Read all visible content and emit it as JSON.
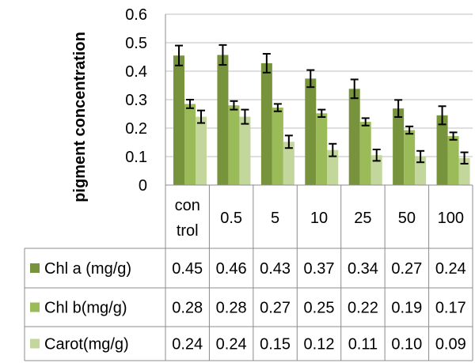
{
  "chart_data": {
    "type": "bar",
    "ylabel": "pigment concentration",
    "ylim": [
      0,
      0.6
    ],
    "yticks": [
      "0",
      "0.1",
      "0.2",
      "0.3",
      "0.4",
      "0.5",
      "0.6"
    ],
    "categories": [
      {
        "line1": "con",
        "line2": "trol"
      },
      {
        "line1": "0.5",
        "line2": ""
      },
      {
        "line1": "5",
        "line2": ""
      },
      {
        "line1": "10",
        "line2": ""
      },
      {
        "line1": "25",
        "line2": ""
      },
      {
        "line1": "50",
        "line2": ""
      },
      {
        "line1": "100",
        "line2": ""
      }
    ],
    "series": [
      {
        "name": "Chl a (mg/g)",
        "color": "#77933C",
        "values": [
          0.455,
          0.457,
          0.428,
          0.374,
          0.338,
          0.269,
          0.245
        ],
        "errors": [
          0.035,
          0.035,
          0.033,
          0.03,
          0.033,
          0.03,
          0.032
        ],
        "labels": [
          "0.45",
          "0.46",
          "0.43",
          "0.37",
          "0.34",
          "0.27",
          "0.24"
        ]
      },
      {
        "name": "Chl b(mg/g)",
        "color": "#9BBB59",
        "values": [
          0.285,
          0.28,
          0.272,
          0.252,
          0.222,
          0.193,
          0.172
        ],
        "errors": [
          0.015,
          0.015,
          0.013,
          0.013,
          0.013,
          0.013,
          0.013
        ],
        "labels": [
          "0.28",
          "0.28",
          "0.27",
          "0.25",
          "0.22",
          "0.19",
          "0.17"
        ]
      },
      {
        "name": "Carot(mg/g)",
        "color": "#C3D69B",
        "values": [
          0.24,
          0.24,
          0.152,
          0.123,
          0.105,
          0.1,
          0.095
        ],
        "errors": [
          0.022,
          0.025,
          0.022,
          0.022,
          0.02,
          0.02,
          0.02
        ],
        "labels": [
          "0.24",
          "0.24",
          "0.15",
          "0.12",
          "0.11",
          "0.10",
          "0.09"
        ]
      }
    ]
  }
}
